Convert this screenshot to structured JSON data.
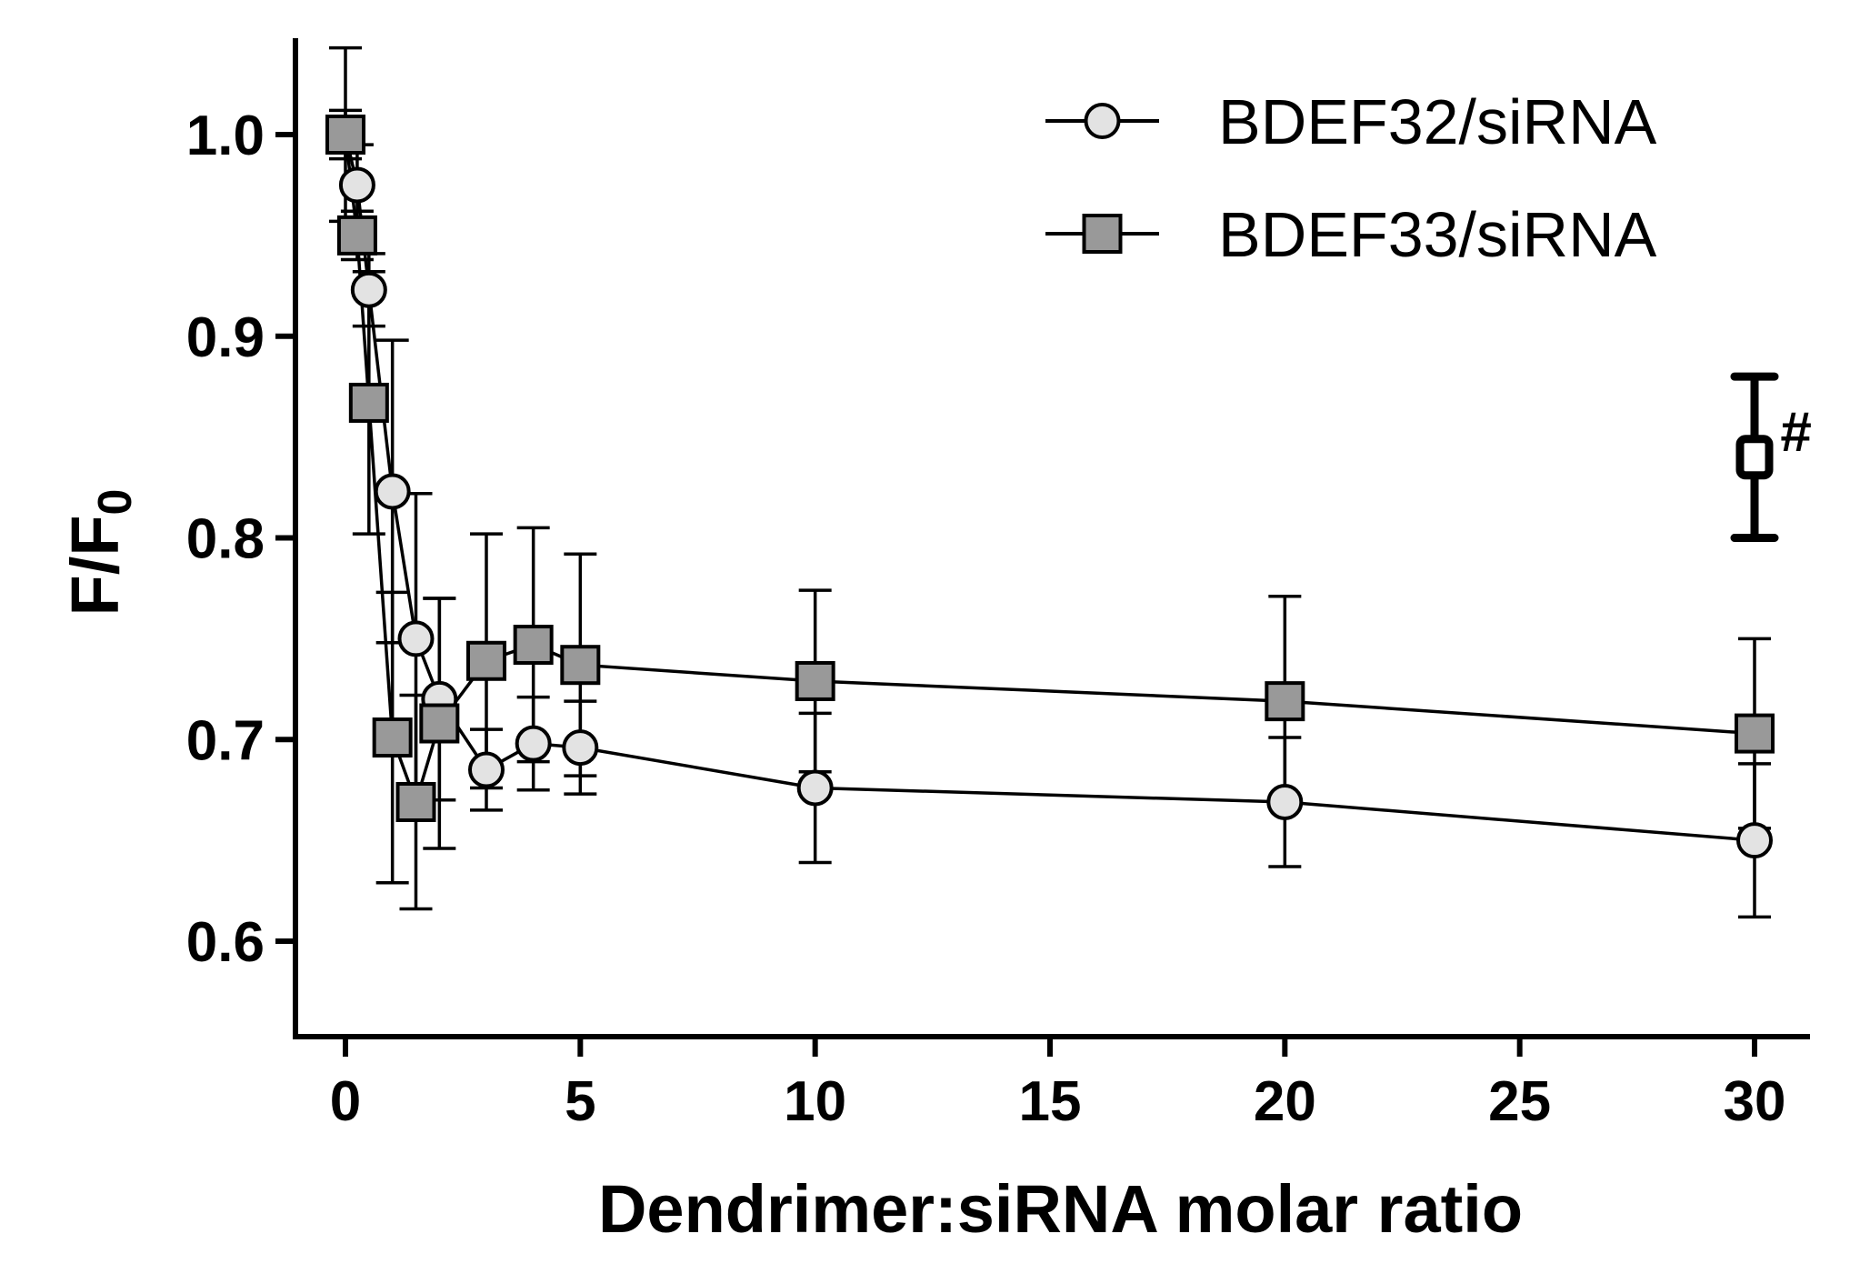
{
  "chart_data": {
    "type": "scatter",
    "title": "",
    "xlabel": "Dendrimer:siRNA molar ratio",
    "ylabel_main": "F/F",
    "ylabel_sub": "0",
    "xlim": [
      -0.8,
      31
    ],
    "ylim": [
      0.55,
      1.05
    ],
    "x_ticks": [
      0,
      5,
      10,
      15,
      20,
      25,
      30
    ],
    "x_tick_labels": [
      "0",
      "5",
      "10",
      "15",
      "20",
      "25",
      "30"
    ],
    "y_ticks": [
      0.6,
      0.7,
      0.8,
      0.9,
      1.0
    ],
    "y_tick_labels": [
      "0.6",
      "0.7",
      "0.8",
      "0.9",
      "1.0"
    ],
    "grid": false,
    "legend_position": "top-right",
    "series": [
      {
        "name": "BDEF32/siRNA",
        "marker": "circle",
        "fill": "#e3e3e3",
        "connected": true,
        "points": [
          {
            "x": 0,
            "y": 1.0,
            "err": 0.043
          },
          {
            "x": 0.25,
            "y": 0.975,
            "err": 0.02
          },
          {
            "x": 0.5,
            "y": 0.923,
            "err": 0.018
          },
          {
            "x": 1,
            "y": 0.823,
            "err": 0.075
          },
          {
            "x": 1.5,
            "y": 0.75,
            "err": 0.072
          },
          {
            "x": 2,
            "y": 0.72,
            "err": 0.05
          },
          {
            "x": 3,
            "y": 0.685,
            "err": 0.02
          },
          {
            "x": 4,
            "y": 0.698,
            "err": 0.023
          },
          {
            "x": 5,
            "y": 0.696,
            "err": 0.023
          },
          {
            "x": 10,
            "y": 0.676,
            "err": 0.037
          },
          {
            "x": 20,
            "y": 0.669,
            "err": 0.032
          },
          {
            "x": 30,
            "y": 0.65,
            "err": 0.038
          }
        ]
      },
      {
        "name": "BDEF33/siRNA",
        "marker": "square",
        "fill": "#999999",
        "connected": true,
        "points": [
          {
            "x": 0,
            "y": 1.0,
            "err": 0.012
          },
          {
            "x": 0.25,
            "y": 0.95,
            "err": 0.012
          },
          {
            "x": 0.5,
            "y": 0.867,
            "err": 0.065
          },
          {
            "x": 1,
            "y": 0.701,
            "err": 0.072
          },
          {
            "x": 1.5,
            "y": 0.669,
            "err": 0.053
          },
          {
            "x": 2,
            "y": 0.708,
            "err": 0.062
          },
          {
            "x": 3,
            "y": 0.739,
            "err": 0.063
          },
          {
            "x": 4,
            "y": 0.747,
            "err": 0.058
          },
          {
            "x": 5,
            "y": 0.737,
            "err": 0.055
          },
          {
            "x": 10,
            "y": 0.729,
            "err": 0.045
          },
          {
            "x": 20,
            "y": 0.719,
            "err": 0.052
          },
          {
            "x": 30,
            "y": 0.703,
            "err": 0.047
          }
        ]
      },
      {
        "name": "",
        "marker": "square-outline",
        "fill": "#ffffff",
        "connected": false,
        "points": [
          {
            "x": 30,
            "y": 0.84,
            "err": 0.04
          }
        ]
      }
    ],
    "annotations": [
      {
        "text": "#",
        "x": 30.55,
        "y": 0.852
      }
    ]
  }
}
